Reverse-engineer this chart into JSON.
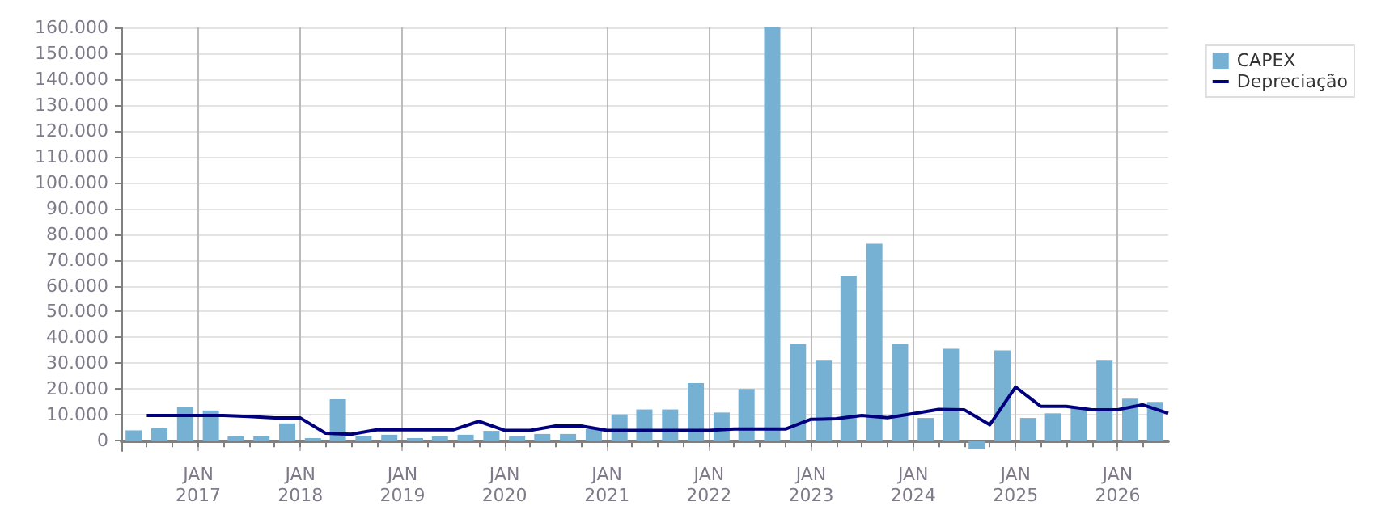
{
  "chart_data": {
    "type": "bar",
    "xlim": [
      "2016-04",
      "2026-07"
    ],
    "xticks": [
      {
        "value": "2016-07",
        "label": null
      },
      {
        "value": "2016-10",
        "label": null
      },
      {
        "value": "2017-01",
        "label": "JAN\n2017"
      },
      {
        "value": "2017-04",
        "label": null
      },
      {
        "value": "2017-07",
        "label": null
      },
      {
        "value": "2017-10",
        "label": null
      },
      {
        "value": "2018-01",
        "label": "JAN\n2018"
      },
      {
        "value": "2018-04",
        "label": null
      },
      {
        "value": "2018-07",
        "label": null
      },
      {
        "value": "2018-10",
        "label": null
      },
      {
        "value": "2019-01",
        "label": "JAN\n2019"
      },
      {
        "value": "2019-04",
        "label": null
      },
      {
        "value": "2019-07",
        "label": null
      },
      {
        "value": "2019-10",
        "label": null
      },
      {
        "value": "2020-01",
        "label": "JAN\n2020"
      },
      {
        "value": "2020-04",
        "label": null
      },
      {
        "value": "2020-07",
        "label": null
      },
      {
        "value": "2020-10",
        "label": null
      },
      {
        "value": "2021-01",
        "label": "JAN\n2021"
      },
      {
        "value": "2021-04",
        "label": null
      },
      {
        "value": "2021-07",
        "label": null
      },
      {
        "value": "2021-10",
        "label": null
      },
      {
        "value": "2022-01",
        "label": "JAN\n2022"
      },
      {
        "value": "2022-04",
        "label": null
      },
      {
        "value": "2022-07",
        "label": null
      },
      {
        "value": "2022-10",
        "label": null
      },
      {
        "value": "2023-01",
        "label": "JAN\n2023"
      },
      {
        "value": "2023-04",
        "label": null
      },
      {
        "value": "2023-07",
        "label": null
      },
      {
        "value": "2023-10",
        "label": null
      },
      {
        "value": "2024-01",
        "label": "JAN\n2024"
      },
      {
        "value": "2024-04",
        "label": null
      },
      {
        "value": "2024-07",
        "label": null
      },
      {
        "value": "2024-10",
        "label": null
      },
      {
        "value": "2025-01",
        "label": "JAN\n2025"
      },
      {
        "value": "2025-04",
        "label": null
      },
      {
        "value": "2025-07",
        "label": null
      },
      {
        "value": "2025-10",
        "label": null
      },
      {
        "value": "2026-01",
        "label": "JAN\n2026"
      },
      {
        "value": "2026-04",
        "label": null
      }
    ],
    "ylim": [
      -4000,
      160000
    ],
    "yticks": [
      {
        "value": 0,
        "label": "0"
      },
      {
        "value": 10000,
        "label": "10.000"
      },
      {
        "value": 20000,
        "label": "20.000"
      },
      {
        "value": 30000,
        "label": "30.000"
      },
      {
        "value": 40000,
        "label": "40.000"
      },
      {
        "value": 50000,
        "label": "50.000"
      },
      {
        "value": 60000,
        "label": "60.000"
      },
      {
        "value": 70000,
        "label": "70.000"
      },
      {
        "value": 80000,
        "label": "80.000"
      },
      {
        "value": 90000,
        "label": "90.000"
      },
      {
        "value": 100000,
        "label": "100.000"
      },
      {
        "value": 110000,
        "label": "110.000"
      },
      {
        "value": 120000,
        "label": "120.000"
      },
      {
        "value": 130000,
        "label": "130.000"
      },
      {
        "value": 140000,
        "label": "140.000"
      },
      {
        "value": 150000,
        "label": "150.000"
      },
      {
        "value": 160000,
        "label": "160.000"
      }
    ],
    "grid": true,
    "legend": "top right",
    "series": [
      {
        "name": "CAPEX",
        "color": "#76b0d3",
        "x": [
          "2016-05-15",
          "2016-08-15",
          "2016-11-15",
          "2017-02-15",
          "2017-05-15",
          "2017-08-15",
          "2017-11-15",
          "2018-02-15",
          "2018-05-15",
          "2018-08-15",
          "2018-11-15",
          "2019-02-15",
          "2019-05-15",
          "2019-08-15",
          "2019-11-15",
          "2020-02-15",
          "2020-05-15",
          "2020-08-15",
          "2020-11-15",
          "2021-02-15",
          "2021-05-15",
          "2021-08-15",
          "2021-11-15",
          "2022-02-15",
          "2022-05-15",
          "2022-08-15",
          "2022-11-15",
          "2023-02-15",
          "2023-05-15",
          "2023-08-15",
          "2023-11-15",
          "2024-02-15",
          "2024-05-15",
          "2024-08-15",
          "2024-11-15",
          "2025-02-15",
          "2025-05-15",
          "2025-08-15",
          "2025-11-15",
          "2026-02-15",
          "2026-05-15"
        ],
        "values": [
          4000,
          4800,
          12900,
          11700,
          1700,
          1700,
          6700,
          1000,
          16000,
          1700,
          2300,
          1000,
          1700,
          2300,
          3800,
          1900,
          2600,
          2600,
          4500,
          10200,
          12100,
          12100,
          22300,
          10900,
          20000,
          160000,
          37500,
          31300,
          63800,
          76300,
          37500,
          8800,
          35600,
          -3300,
          35000,
          8800,
          10600,
          13100,
          31300,
          16300,
          15000
        ]
      },
      {
        "name": "Depreciação",
        "type": "line",
        "color": "#00007f",
        "marker": "none",
        "x": [
          "2016-07",
          "2016-10",
          "2017-01",
          "2017-04",
          "2017-07",
          "2017-10",
          "2018-01",
          "2018-04",
          "2018-07",
          "2018-10",
          "2019-01",
          "2019-04",
          "2019-07",
          "2019-10",
          "2020-01",
          "2020-04",
          "2020-07",
          "2020-10",
          "2021-01",
          "2021-04",
          "2021-07",
          "2021-10",
          "2022-01",
          "2022-04",
          "2022-07",
          "2022-10",
          "2023-01",
          "2023-04",
          "2023-07",
          "2023-10",
          "2024-01",
          "2024-04",
          "2024-07",
          "2024-10",
          "2025-01",
          "2025-04",
          "2025-07",
          "2025-10",
          "2026-01",
          "2026-04",
          "2026-07"
        ],
        "values": [
          9800,
          9800,
          9800,
          9800,
          9400,
          8800,
          8800,
          2900,
          2500,
          4200,
          4200,
          4200,
          4200,
          7500,
          4000,
          4000,
          5700,
          5700,
          4000,
          4000,
          4000,
          4000,
          4000,
          4500,
          4500,
          4500,
          8300,
          8500,
          9800,
          8900,
          10500,
          12100,
          12000,
          6200,
          20800,
          13300,
          13300,
          12000,
          12000,
          13900,
          10600
        ]
      }
    ]
  }
}
